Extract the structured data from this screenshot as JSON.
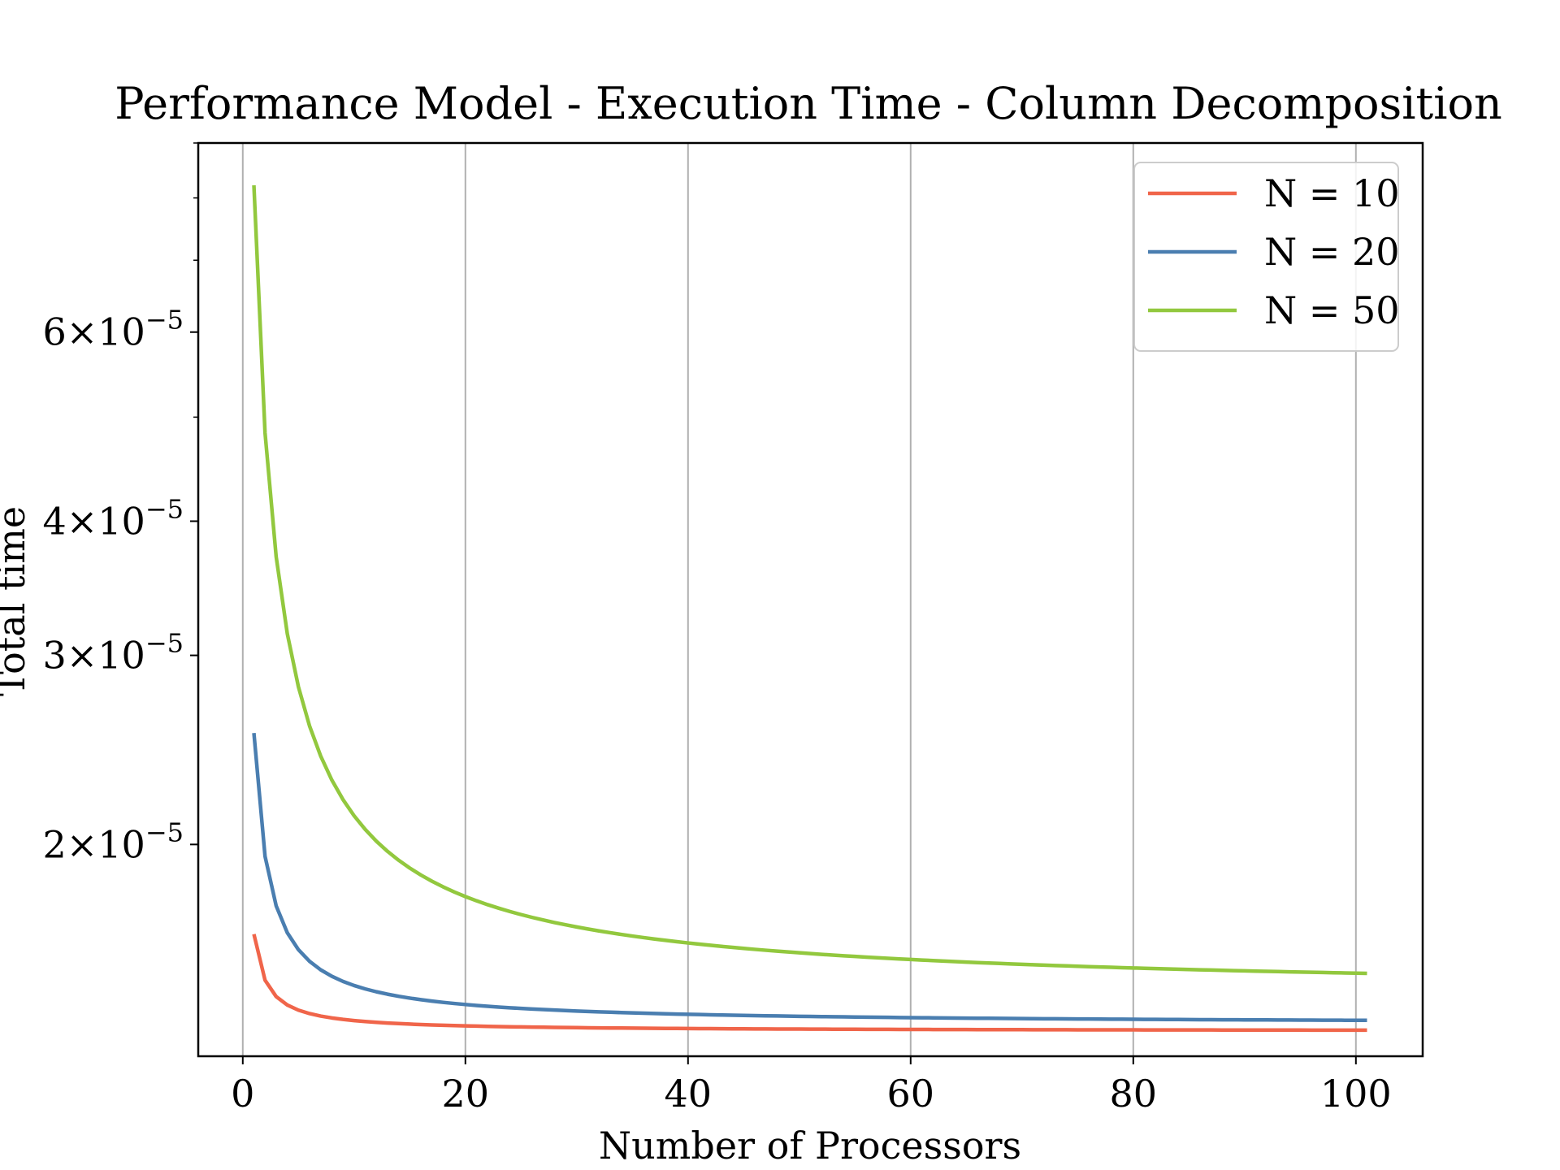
{
  "chart_data": {
    "type": "line",
    "title": "Performance Model - Execution Time - Column Decomposition",
    "xlabel": "Number of Processors",
    "ylabel": "Total time",
    "xlim": [
      -4,
      106
    ],
    "ylim": [
      1.27e-05,
      9e-05
    ],
    "yscale": "log",
    "grid": "x-only",
    "legend_position": "top-right",
    "x_ticks": [
      0,
      20,
      40,
      60,
      80,
      100
    ],
    "x_tick_labels": [
      "0",
      "20",
      "40",
      "60",
      "80",
      "100"
    ],
    "y_ticks": [
      2e-05,
      3e-05,
      4e-05,
      6e-05
    ],
    "y_tick_labels": [
      {
        "mantissa": "2",
        "times": "×",
        "base": "10",
        "exp": "−5"
      },
      {
        "mantissa": "3",
        "times": "×",
        "base": "10",
        "exp": "−5"
      },
      {
        "mantissa": "4",
        "times": "×",
        "base": "10",
        "exp": "−5"
      },
      {
        "mantissa": "6",
        "times": "×",
        "base": "10",
        "exp": "−5"
      }
    ],
    "y_minor_ticks": [
      5e-05,
      7e-05,
      8e-05,
      9e-05
    ],
    "series": [
      {
        "name": "N = 10",
        "color": "#f0654a",
        "model": {
          "a": 1.34e-05,
          "b": 3.1e-06
        }
      },
      {
        "name": "N = 20",
        "color": "#4a7eb0",
        "model": {
          "a": 1.36e-05,
          "b": 1.18e-05
        }
      },
      {
        "name": "N = 50",
        "color": "#92c83e",
        "model": {
          "a": 1.45e-05,
          "b": 6.77e-05
        }
      }
    ],
    "x_range": [
      1,
      101
    ]
  }
}
